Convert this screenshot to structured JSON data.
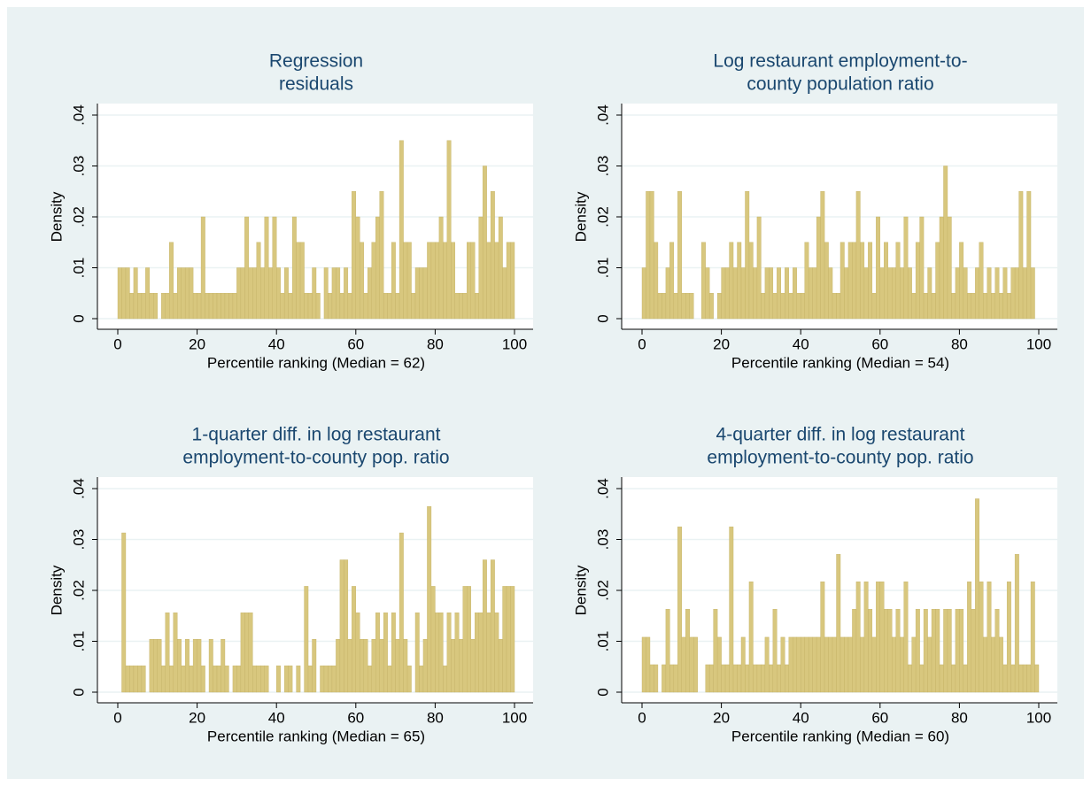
{
  "chart_data": [
    {
      "type": "histogram",
      "title": [
        "Regression",
        "residuals"
      ],
      "ylabel": "Density",
      "xlabel": "Percentile ranking (Median = 62)",
      "color": "#d8c77e",
      "grid": true,
      "xlim": [
        0,
        100
      ],
      "ylim": [
        0,
        0.04
      ],
      "xticks": [
        0,
        20,
        40,
        60,
        80,
        100
      ],
      "yticks": [
        0,
        {
          "value": 0.01,
          "label": ".01"
        },
        {
          "value": 0.02,
          "label": ".02"
        },
        {
          "value": 0.03,
          "label": ".03"
        },
        {
          "value": 0.04,
          "label": ".04"
        }
      ],
      "bins": [
        0,
        1,
        2,
        3,
        4,
        5,
        6,
        7,
        8,
        9,
        10,
        11,
        12,
        13,
        14,
        15,
        16,
        17,
        18,
        19,
        20,
        21,
        22,
        23,
        24,
        25,
        26,
        27,
        28,
        29,
        30,
        31,
        32,
        33,
        34,
        35,
        36,
        37,
        38,
        39,
        40,
        41,
        42,
        43,
        44,
        45,
        46,
        47,
        48,
        49,
        50,
        51,
        52,
        53,
        54,
        55,
        56,
        57,
        58,
        59,
        60,
        61,
        62,
        63,
        64,
        65,
        66,
        67,
        68,
        69,
        70,
        71,
        72,
        73,
        74,
        75,
        76,
        77,
        78,
        79,
        80,
        81,
        82,
        83,
        84,
        85,
        86,
        87,
        88,
        89,
        90,
        91,
        92,
        93,
        94,
        95,
        96,
        97,
        98,
        99,
        100
      ],
      "values": [
        0.01,
        0.01,
        0.01,
        0.005,
        0.01,
        0.005,
        0.005,
        0.01,
        0.005,
        0.005,
        0,
        0.005,
        0.005,
        0.015,
        0.005,
        0.01,
        0.01,
        0.01,
        0.01,
        0.005,
        0.005,
        0.02,
        0.005,
        0.005,
        0.005,
        0.005,
        0.005,
        0.005,
        0.005,
        0.005,
        0.01,
        0.01,
        0.02,
        0.01,
        0.01,
        0.015,
        0.01,
        0.02,
        0.01,
        0.02,
        0.01,
        0.005,
        0.01,
        0.005,
        0.02,
        0.015,
        0.015,
        0.005,
        0.005,
        0.01,
        0.005,
        0,
        0.01,
        0.005,
        0.01,
        0.01,
        0.005,
        0.01,
        0.005,
        0.025,
        0.02,
        0.015,
        0.005,
        0.01,
        0.015,
        0.02,
        0.025,
        0.005,
        0.005,
        0.015,
        0.005,
        0.035,
        0.015,
        0.015,
        0.005,
        0.01,
        0.01,
        0.01,
        0.015,
        0.015,
        0.015,
        0.02,
        0.015,
        0.035,
        0.015,
        0.005,
        0.005,
        0.005,
        0.015,
        0.015,
        0.005,
        0.02,
        0.03,
        0.015,
        0.025,
        0.015,
        0.02,
        0.01,
        0.015,
        0.015
      ]
    },
    {
      "type": "histogram",
      "title": [
        "Log restaurant employment-to-",
        "county population ratio"
      ],
      "ylabel": "Density",
      "xlabel": "Percentile ranking (Median = 54)",
      "color": "#d8c77e",
      "grid": true,
      "xlim": [
        0,
        100
      ],
      "ylim": [
        0,
        0.04
      ],
      "xticks": [
        0,
        20,
        40,
        60,
        80,
        100
      ],
      "yticks": [
        0,
        {
          "value": 0.01,
          "label": ".01"
        },
        {
          "value": 0.02,
          "label": ".02"
        },
        {
          "value": 0.03,
          "label": ".03"
        },
        {
          "value": 0.04,
          "label": ".04"
        }
      ],
      "bins": [
        0,
        1,
        2,
        3,
        4,
        5,
        6,
        7,
        8,
        9,
        10,
        11,
        12,
        13,
        14,
        15,
        16,
        17,
        18,
        19,
        20,
        21,
        22,
        23,
        24,
        25,
        26,
        27,
        28,
        29,
        30,
        31,
        32,
        33,
        34,
        35,
        36,
        37,
        38,
        39,
        40,
        41,
        42,
        43,
        44,
        45,
        46,
        47,
        48,
        49,
        50,
        51,
        52,
        53,
        54,
        55,
        56,
        57,
        58,
        59,
        60,
        61,
        62,
        63,
        64,
        65,
        66,
        67,
        68,
        69,
        70,
        71,
        72,
        73,
        74,
        75,
        76,
        77,
        78,
        79,
        80,
        81,
        82,
        83,
        84,
        85,
        86,
        87,
        88,
        89,
        90,
        91,
        92,
        93,
        94,
        95,
        96,
        97,
        98,
        99,
        100
      ],
      "values": [
        0.01,
        0.025,
        0.025,
        0.015,
        0.005,
        0.005,
        0.01,
        0.015,
        0.005,
        0.025,
        0.005,
        0.005,
        0.005,
        0,
        0,
        0.015,
        0.01,
        0.005,
        0,
        0.005,
        0.01,
        0.01,
        0.015,
        0.01,
        0.015,
        0.01,
        0.025,
        0.015,
        0.01,
        0.02,
        0.005,
        0.01,
        0.01,
        0.005,
        0.01,
        0.005,
        0.01,
        0.005,
        0.01,
        0.005,
        0.005,
        0.015,
        0.01,
        0.01,
        0.02,
        0.025,
        0.015,
        0.01,
        0.005,
        0.005,
        0.015,
        0.01,
        0.015,
        0.015,
        0.025,
        0.015,
        0.01,
        0.015,
        0.005,
        0.02,
        0.01,
        0.015,
        0.01,
        0.01,
        0.015,
        0.01,
        0.02,
        0.01,
        0.005,
        0.015,
        0.02,
        0.005,
        0.01,
        0.005,
        0.015,
        0.02,
        0.03,
        0.02,
        0.005,
        0.01,
        0.015,
        0.01,
        0.005,
        0.005,
        0.01,
        0.015,
        0.005,
        0.01,
        0.005,
        0.01,
        0.005,
        0.01,
        0.005,
        0.01,
        0.01,
        0.025,
        0.01,
        0.025,
        0.01,
        0
      ]
    },
    {
      "type": "histogram",
      "title": [
        "1-quarter diff. in log restaurant",
        "employment-to-county pop. ratio"
      ],
      "ylabel": "Density",
      "xlabel": "Percentile ranking (Median = 65)",
      "color": "#d8c77e",
      "grid": true,
      "xlim": [
        0,
        100
      ],
      "ylim": [
        0,
        0.04
      ],
      "xticks": [
        0,
        20,
        40,
        60,
        80,
        100
      ],
      "yticks": [
        0,
        {
          "value": 0.01,
          "label": ".01"
        },
        {
          "value": 0.02,
          "label": ".02"
        },
        {
          "value": 0.03,
          "label": ".03"
        },
        {
          "value": 0.04,
          "label": ".04"
        }
      ],
      "bins": [
        0,
        1,
        2,
        3,
        4,
        5,
        6,
        7,
        8,
        9,
        10,
        11,
        12,
        13,
        14,
        15,
        16,
        17,
        18,
        19,
        20,
        21,
        22,
        23,
        24,
        25,
        26,
        27,
        28,
        29,
        30,
        31,
        32,
        33,
        34,
        35,
        36,
        37,
        38,
        39,
        40,
        41,
        42,
        43,
        44,
        45,
        46,
        47,
        48,
        49,
        50,
        51,
        52,
        53,
        54,
        55,
        56,
        57,
        58,
        59,
        60,
        61,
        62,
        63,
        64,
        65,
        66,
        67,
        68,
        69,
        70,
        71,
        72,
        73,
        74,
        75,
        76,
        77,
        78,
        79,
        80,
        81,
        82,
        83,
        84,
        85,
        86,
        87,
        88,
        89,
        90,
        91,
        92,
        93,
        94,
        95,
        96,
        97,
        98,
        99,
        100
      ],
      "values": [
        0,
        0.0313,
        0.0052,
        0.0052,
        0.0052,
        0.0052,
        0.0052,
        0,
        0.0104,
        0.0104,
        0.0104,
        0.0052,
        0.0156,
        0.0052,
        0.0156,
        0.0104,
        0.0052,
        0.0104,
        0.0052,
        0.0104,
        0.0104,
        0.0052,
        0,
        0.0104,
        0.0052,
        0.0052,
        0.0104,
        0.0052,
        0,
        0.0052,
        0.0052,
        0.0156,
        0.0156,
        0.0156,
        0.0052,
        0.0052,
        0.0052,
        0.0052,
        0,
        0,
        0.0052,
        0,
        0.0052,
        0.0052,
        0,
        0.0052,
        0,
        0.0208,
        0.0052,
        0.0104,
        0,
        0.0052,
        0.0052,
        0.0052,
        0.0052,
        0.0104,
        0.026,
        0.026,
        0.0104,
        0.0208,
        0.0156,
        0.0104,
        0.0104,
        0.0052,
        0.0104,
        0.0156,
        0.0104,
        0.0156,
        0.0052,
        0.0156,
        0.0104,
        0.0313,
        0.0104,
        0.0052,
        0,
        0.0156,
        0.0052,
        0.0104,
        0.0365,
        0.0208,
        0.0156,
        0.0156,
        0.0052,
        0.0156,
        0.0104,
        0.0156,
        0.0104,
        0.0208,
        0.0208,
        0.0104,
        0.0156,
        0.0156,
        0.026,
        0.0156,
        0.026,
        0.0156,
        0.0104,
        0.0208,
        0.0208,
        0.0208
      ]
    },
    {
      "type": "histogram",
      "title": [
        "4-quarter diff. in log restaurant",
        "employment-to-county pop. ratio"
      ],
      "ylabel": "Density",
      "xlabel": "Percentile ranking (Median = 60)",
      "color": "#d8c77e",
      "grid": true,
      "xlim": [
        0,
        100
      ],
      "ylim": [
        0,
        0.04
      ],
      "xticks": [
        0,
        20,
        40,
        60,
        80,
        100
      ],
      "yticks": [
        0,
        {
          "value": 0.01,
          "label": ".01"
        },
        {
          "value": 0.02,
          "label": ".02"
        },
        {
          "value": 0.03,
          "label": ".03"
        },
        {
          "value": 0.04,
          "label": ".04"
        }
      ],
      "bins": [
        0,
        1,
        2,
        3,
        4,
        5,
        6,
        7,
        8,
        9,
        10,
        11,
        12,
        13,
        14,
        15,
        16,
        17,
        18,
        19,
        20,
        21,
        22,
        23,
        24,
        25,
        26,
        27,
        28,
        29,
        30,
        31,
        32,
        33,
        34,
        35,
        36,
        37,
        38,
        39,
        40,
        41,
        42,
        43,
        44,
        45,
        46,
        47,
        48,
        49,
        50,
        51,
        52,
        53,
        54,
        55,
        56,
        57,
        58,
        59,
        60,
        61,
        62,
        63,
        64,
        65,
        66,
        67,
        68,
        69,
        70,
        71,
        72,
        73,
        74,
        75,
        76,
        77,
        78,
        79,
        80,
        81,
        82,
        83,
        84,
        85,
        86,
        87,
        88,
        89,
        90,
        91,
        92,
        93,
        94,
        95,
        96,
        97,
        98,
        99,
        100
      ],
      "values": [
        0.0108,
        0.0108,
        0.0054,
        0.0054,
        0,
        0.0054,
        0.0163,
        0.0054,
        0.0054,
        0.0325,
        0.0108,
        0.0163,
        0.0108,
        0.0108,
        0,
        0,
        0.0054,
        0.0054,
        0.0163,
        0.0108,
        0.0054,
        0.0054,
        0.0325,
        0.0054,
        0.0054,
        0.0108,
        0.0054,
        0.0217,
        0.0054,
        0.0054,
        0.0054,
        0.0108,
        0.0054,
        0.0163,
        0.0054,
        0.0108,
        0.0054,
        0.0108,
        0.0108,
        0.0108,
        0.0108,
        0.0108,
        0.0108,
        0.0108,
        0.0108,
        0.0217,
        0.0108,
        0.0108,
        0.0108,
        0.0271,
        0.0108,
        0.0108,
        0.0108,
        0.0163,
        0.0217,
        0.0108,
        0.0217,
        0.0163,
        0.0108,
        0.0217,
        0.0217,
        0.0163,
        0.0163,
        0.0108,
        0.0163,
        0.0108,
        0.0217,
        0.0054,
        0.0108,
        0.0163,
        0.0054,
        0.0163,
        0.0108,
        0.0163,
        0.0163,
        0.0054,
        0.0163,
        0.0163,
        0.0054,
        0.0163,
        0.0163,
        0.0054,
        0.0217,
        0.0163,
        0.038,
        0.0217,
        0.0108,
        0.0217,
        0.0108,
        0.0163,
        0.0108,
        0.0054,
        0.0217,
        0.0054,
        0.0271,
        0.0054,
        0.0054,
        0.0054,
        0.0217,
        0.0054
      ]
    }
  ]
}
